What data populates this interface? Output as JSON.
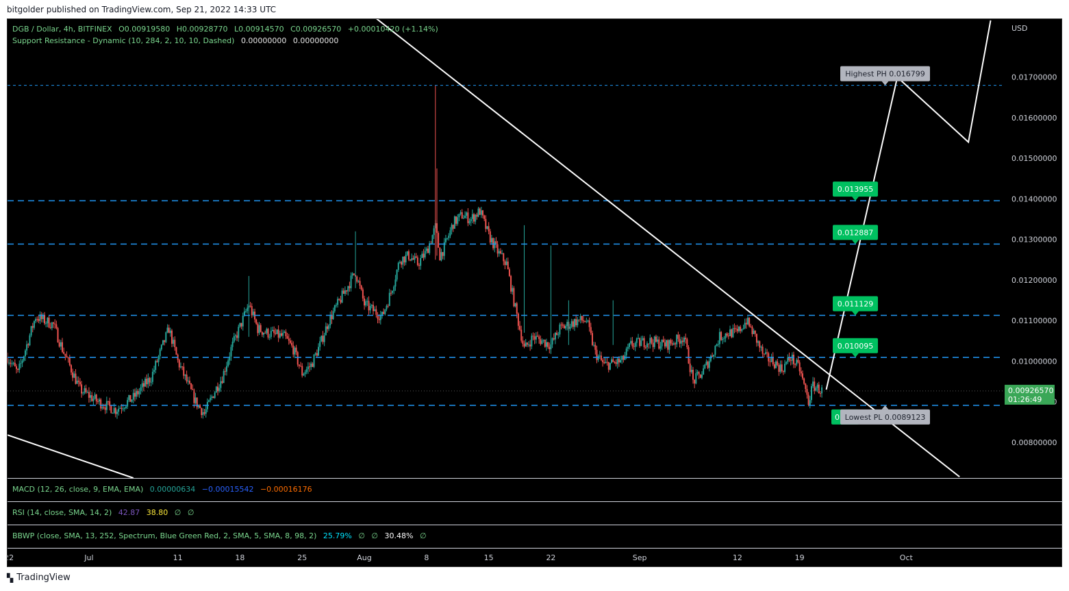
{
  "header": {
    "published": "bitgolder published on TradingView.com, Sep 21, 2022 14:33 UTC"
  },
  "footer": {
    "brand": "TradingView",
    "logo_icon": "tradingview-logo-icon"
  },
  "legend": {
    "symbol": "DGB / Dollar, 4h, BITFINEX",
    "open": "O0.00919580",
    "high": "H0.00928770",
    "low": "L0.00914570",
    "close": "C0.00926570",
    "change": "+0.00010420 (+1.14%)",
    "indicator_name": "Support Resistance - Dynamic (10, 284, 2, 10, 10, Dashed)",
    "indicator_v1": "0.00000000",
    "indicator_v2": "0.00000000"
  },
  "currency": "USD",
  "price_label": {
    "price": "0.00926570",
    "countdown": "01:26:49",
    "value": 0.0092657
  },
  "annotations": {
    "highest": {
      "text": "Highest PH 0.016799",
      "value": 0.016799
    },
    "lowest": {
      "text": "Lowest PL 0.0089123",
      "value": 0.0089123
    },
    "levels": [
      {
        "text": "0.013955",
        "value": 0.013955
      },
      {
        "text": "0.012887",
        "value": 0.012887
      },
      {
        "text": "0.011129",
        "value": 0.011129
      },
      {
        "text": "0.010095",
        "value": 0.010095
      }
    ],
    "hidden_label_fragment": "0"
  },
  "indicators": {
    "macd": {
      "label": "MACD (12, 26, close, 9, EMA, EMA)",
      "v1": "0.00000634",
      "v2": "−0.00015542",
      "v3": "−0.00016176"
    },
    "rsi": {
      "label": "RSI (14, close, SMA, 14, 2)",
      "v1": "42.87",
      "v2": "38.80",
      "v3": "∅",
      "v4": "∅"
    },
    "bbwp": {
      "label": "BBWP (close, SMA, 13, 252, Spectrum, Blue Green Red, 2, SMA, 5, SMA, 8, 98, 2)",
      "v1": "25.79%",
      "v2": "∅",
      "v3": "∅",
      "v4": "30.48%",
      "v5": "∅"
    }
  },
  "colors": {
    "bull": "#26a69a",
    "bear": "#ef5350",
    "level": "#2196f3",
    "label_green": "#00c060",
    "label_gray": "#b2b5be"
  },
  "chart_data": {
    "type": "candlestick",
    "symbol": "DGB / Dollar",
    "timeframe": "4h",
    "exchange": "BITFINEX",
    "y_ticks": [
      0.008,
      0.009,
      0.01,
      0.011,
      0.012,
      0.013,
      0.014,
      0.015,
      0.016,
      0.017
    ],
    "y_tick_labels": [
      "0.00800000",
      "0.00900000",
      "0.01000000",
      "0.01100000",
      "0.01200000",
      "0.01300000",
      "0.01400000",
      "0.01500000",
      "0.01600000",
      "0.01700000"
    ],
    "y_range": [
      0.00712,
      0.01843
    ],
    "x_range": [
      "2022-06-21T20:00",
      "2022-10-12T00:00"
    ],
    "x_ticks": [
      {
        "label": "22",
        "date": "2022-06-22"
      },
      {
        "label": "Jul",
        "date": "2022-07-01"
      },
      {
        "label": "11",
        "date": "2022-07-11"
      },
      {
        "label": "18",
        "date": "2022-07-18"
      },
      {
        "label": "25",
        "date": "2022-07-25"
      },
      {
        "label": "Aug",
        "date": "2022-08-01"
      },
      {
        "label": "8",
        "date": "2022-08-08"
      },
      {
        "label": "15",
        "date": "2022-08-15"
      },
      {
        "label": "22",
        "date": "2022-08-22"
      },
      {
        "label": "Sep",
        "date": "2022-09-01"
      },
      {
        "label": "12",
        "date": "2022-09-12"
      },
      {
        "label": "19",
        "date": "2022-09-19"
      },
      {
        "label": "Oct",
        "date": "2022-10-01"
      }
    ],
    "price_path": [
      [
        "2022-06-21T20:00",
        0.0101
      ],
      [
        "2022-06-23",
        0.0097
      ],
      [
        "2022-06-24",
        0.0104
      ],
      [
        "2022-06-25",
        0.0111
      ],
      [
        "2022-06-27",
        0.0109
      ],
      [
        "2022-06-28",
        0.0103
      ],
      [
        "2022-06-30",
        0.0093
      ],
      [
        "2022-07-02",
        0.009
      ],
      [
        "2022-07-04",
        0.0088
      ],
      [
        "2022-07-06",
        0.0091
      ],
      [
        "2022-07-08",
        0.0096
      ],
      [
        "2022-07-10",
        0.0108
      ],
      [
        "2022-07-11",
        0.01
      ],
      [
        "2022-07-13",
        0.009
      ],
      [
        "2022-07-14",
        0.0087
      ],
      [
        "2022-07-15",
        0.0092
      ],
      [
        "2022-07-16",
        0.0096
      ],
      [
        "2022-07-17",
        0.0103
      ],
      [
        "2022-07-19",
        0.0114
      ],
      [
        "2022-07-20",
        0.0108
      ],
      [
        "2022-07-21",
        0.0107
      ],
      [
        "2022-07-23",
        0.0106
      ],
      [
        "2022-07-24",
        0.0103
      ],
      [
        "2022-07-25",
        0.0097
      ],
      [
        "2022-07-26",
        0.0099
      ],
      [
        "2022-07-27",
        0.0104
      ],
      [
        "2022-07-28",
        0.011
      ],
      [
        "2022-07-30",
        0.0118
      ],
      [
        "2022-07-31",
        0.0122
      ],
      [
        "2022-08-01",
        0.0114
      ],
      [
        "2022-08-03",
        0.0111
      ],
      [
        "2022-08-04",
        0.0117
      ],
      [
        "2022-08-05",
        0.0125
      ],
      [
        "2022-08-06",
        0.0126
      ],
      [
        "2022-08-07",
        0.0124
      ],
      [
        "2022-08-08",
        0.0127
      ],
      [
        "2022-08-09",
        0.0133
      ],
      [
        "2022-08-09T12:00",
        0.0126
      ],
      [
        "2022-08-10",
        0.0128
      ],
      [
        "2022-08-11",
        0.0134
      ],
      [
        "2022-08-12",
        0.0136
      ],
      [
        "2022-08-13",
        0.0135
      ],
      [
        "2022-08-14",
        0.0137
      ],
      [
        "2022-08-15",
        0.0131
      ],
      [
        "2022-08-16",
        0.0127
      ],
      [
        "2022-08-17",
        0.0124
      ],
      [
        "2022-08-18",
        0.0113
      ],
      [
        "2022-08-19",
        0.0103
      ],
      [
        "2022-08-20",
        0.0106
      ],
      [
        "2022-08-21",
        0.0105
      ],
      [
        "2022-08-22",
        0.0104
      ],
      [
        "2022-08-23",
        0.0108
      ],
      [
        "2022-08-25",
        0.011
      ],
      [
        "2022-08-26",
        0.011
      ],
      [
        "2022-08-27",
        0.0102
      ],
      [
        "2022-08-28",
        0.0099
      ],
      [
        "2022-08-30",
        0.01
      ],
      [
        "2022-08-31",
        0.0104
      ],
      [
        "2022-09-02",
        0.0105
      ],
      [
        "2022-09-04",
        0.0104
      ],
      [
        "2022-09-06",
        0.0106
      ],
      [
        "2022-09-07",
        0.0095
      ],
      [
        "2022-09-08",
        0.0097
      ],
      [
        "2022-09-09",
        0.0101
      ],
      [
        "2022-09-10",
        0.0106
      ],
      [
        "2022-09-11",
        0.0107
      ],
      [
        "2022-09-12",
        0.0107
      ],
      [
        "2022-09-13",
        0.011
      ],
      [
        "2022-09-14",
        0.0106
      ],
      [
        "2022-09-15",
        0.0101
      ],
      [
        "2022-09-16",
        0.01
      ],
      [
        "2022-09-17",
        0.0098
      ],
      [
        "2022-09-18",
        0.0101
      ],
      [
        "2022-09-19",
        0.0098
      ],
      [
        "2022-09-20",
        0.009
      ],
      [
        "2022-09-20T12:00",
        0.0094
      ],
      [
        "2022-09-21T12:00",
        0.0092657
      ]
    ],
    "wick_spikes": [
      [
        "2022-08-09",
        0.01679,
        0.0125
      ],
      [
        "2022-08-09T04:00",
        0.01475,
        0.0126
      ],
      [
        "2022-08-19",
        0.01335,
        0.0107
      ],
      [
        "2022-08-22",
        0.01285,
        0.0102
      ],
      [
        "2022-08-24",
        0.0115,
        0.0104
      ],
      [
        "2022-08-29",
        0.0115,
        0.0104
      ],
      [
        "2022-07-31",
        0.0132,
        0.0118
      ],
      [
        "2022-07-19",
        0.0121,
        0.0106
      ]
    ],
    "support_resistance_levels": [
      0.016799,
      0.013955,
      0.012887,
      0.011129,
      0.010095,
      0.0089123
    ],
    "trendlines": [
      {
        "name": "descending-resistance",
        "from": [
          "2022-07-31",
          0.01885
        ],
        "to": [
          "2022-10-07",
          0.00715
        ]
      },
      {
        "name": "lower-support",
        "from": [
          "2022-06-21T20:00",
          0.00818
        ],
        "to": [
          "2022-07-06",
          0.00712
        ]
      }
    ],
    "projection_path": [
      [
        "2022-09-22",
        0.0093
      ],
      [
        "2022-09-30",
        0.017
      ],
      [
        "2022-10-08",
        0.0154
      ],
      [
        "2022-10-10T12:00",
        0.0184
      ]
    ]
  }
}
